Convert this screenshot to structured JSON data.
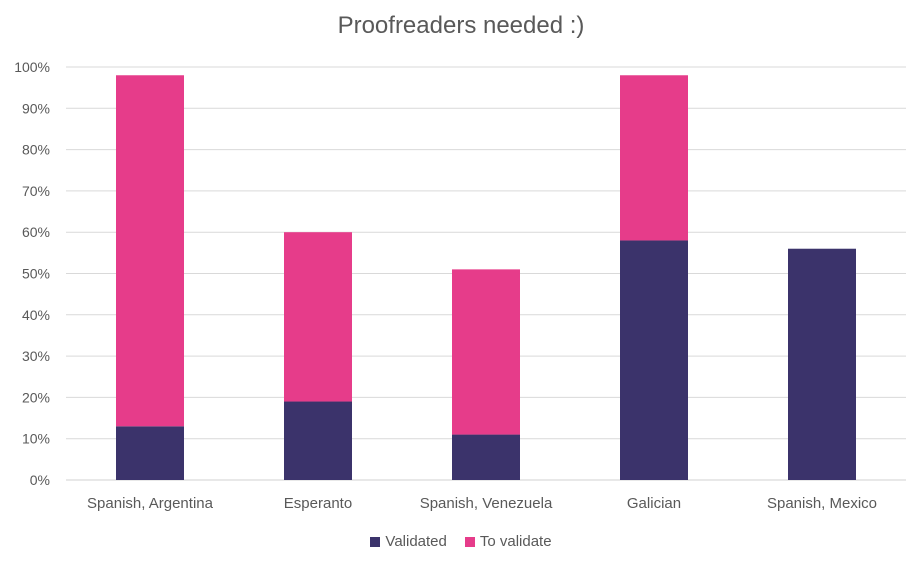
{
  "chart_data": {
    "type": "bar",
    "stacked": true,
    "title": "Proofreaders needed :)",
    "categories": [
      "Spanish, Argentina",
      "Esperanto",
      "Spanish, Venezuela",
      "Galician",
      "Spanish, Mexico"
    ],
    "series": [
      {
        "name": "Validated",
        "color": "#3b336b",
        "values": [
          13,
          19,
          11,
          58,
          56
        ]
      },
      {
        "name": "To validate",
        "color": "#e63c8a",
        "values": [
          85,
          41,
          40,
          40,
          0
        ]
      }
    ],
    "y_ticks": [
      "0%",
      "10%",
      "20%",
      "30%",
      "40%",
      "50%",
      "60%",
      "70%",
      "80%",
      "90%",
      "100%"
    ],
    "ylim": [
      0,
      100
    ],
    "grid": true,
    "legend_position": "bottom"
  }
}
